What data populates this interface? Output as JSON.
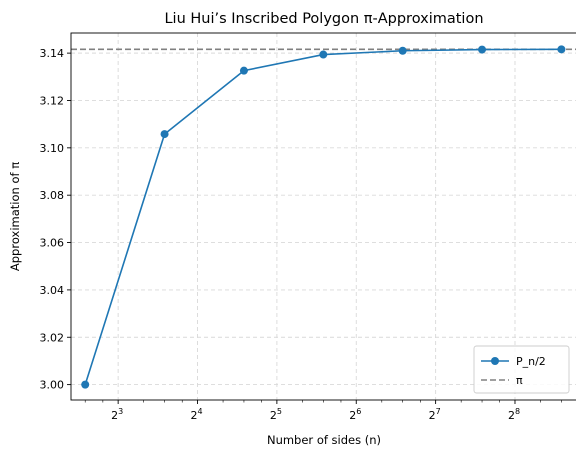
{
  "chart_data": {
    "type": "line",
    "title": "Liu Hui’s Inscribed Polygon π-Approximation",
    "xlabel": "Number of sides (n)",
    "ylabel": "Approximation of π",
    "x_scale": "log2",
    "xlim": [
      5.3,
      440
    ],
    "ylim": [
      2.9935,
      3.1485
    ],
    "grid": true,
    "legend_position": "lower-right",
    "x_ticks": [
      {
        "base": "2",
        "exp": "3",
        "value": 8
      },
      {
        "base": "2",
        "exp": "4",
        "value": 16
      },
      {
        "base": "2",
        "exp": "5",
        "value": 32
      },
      {
        "base": "2",
        "exp": "6",
        "value": 64
      },
      {
        "base": "2",
        "exp": "7",
        "value": 128
      },
      {
        "base": "2",
        "exp": "8",
        "value": 256
      }
    ],
    "y_ticks": [
      {
        "label": "3.00",
        "value": 3.0
      },
      {
        "label": "3.02",
        "value": 3.02
      },
      {
        "label": "3.04",
        "value": 3.04
      },
      {
        "label": "3.06",
        "value": 3.06
      },
      {
        "label": "3.08",
        "value": 3.08
      },
      {
        "label": "3.10",
        "value": 3.1
      },
      {
        "label": "3.12",
        "value": 3.12
      },
      {
        "label": "3.14",
        "value": 3.14
      }
    ],
    "series": [
      {
        "name": "P_n/2",
        "color": "#1f77b4",
        "style": "line-marker",
        "x": [
          6,
          12,
          24,
          48,
          96,
          192,
          384
        ],
        "y": [
          3.0,
          3.1058,
          3.1326,
          3.1394,
          3.141,
          3.1415,
          3.1416
        ]
      },
      {
        "name": "π",
        "color": "#808080",
        "style": "dashed-hline",
        "y": 3.14159
      }
    ]
  }
}
